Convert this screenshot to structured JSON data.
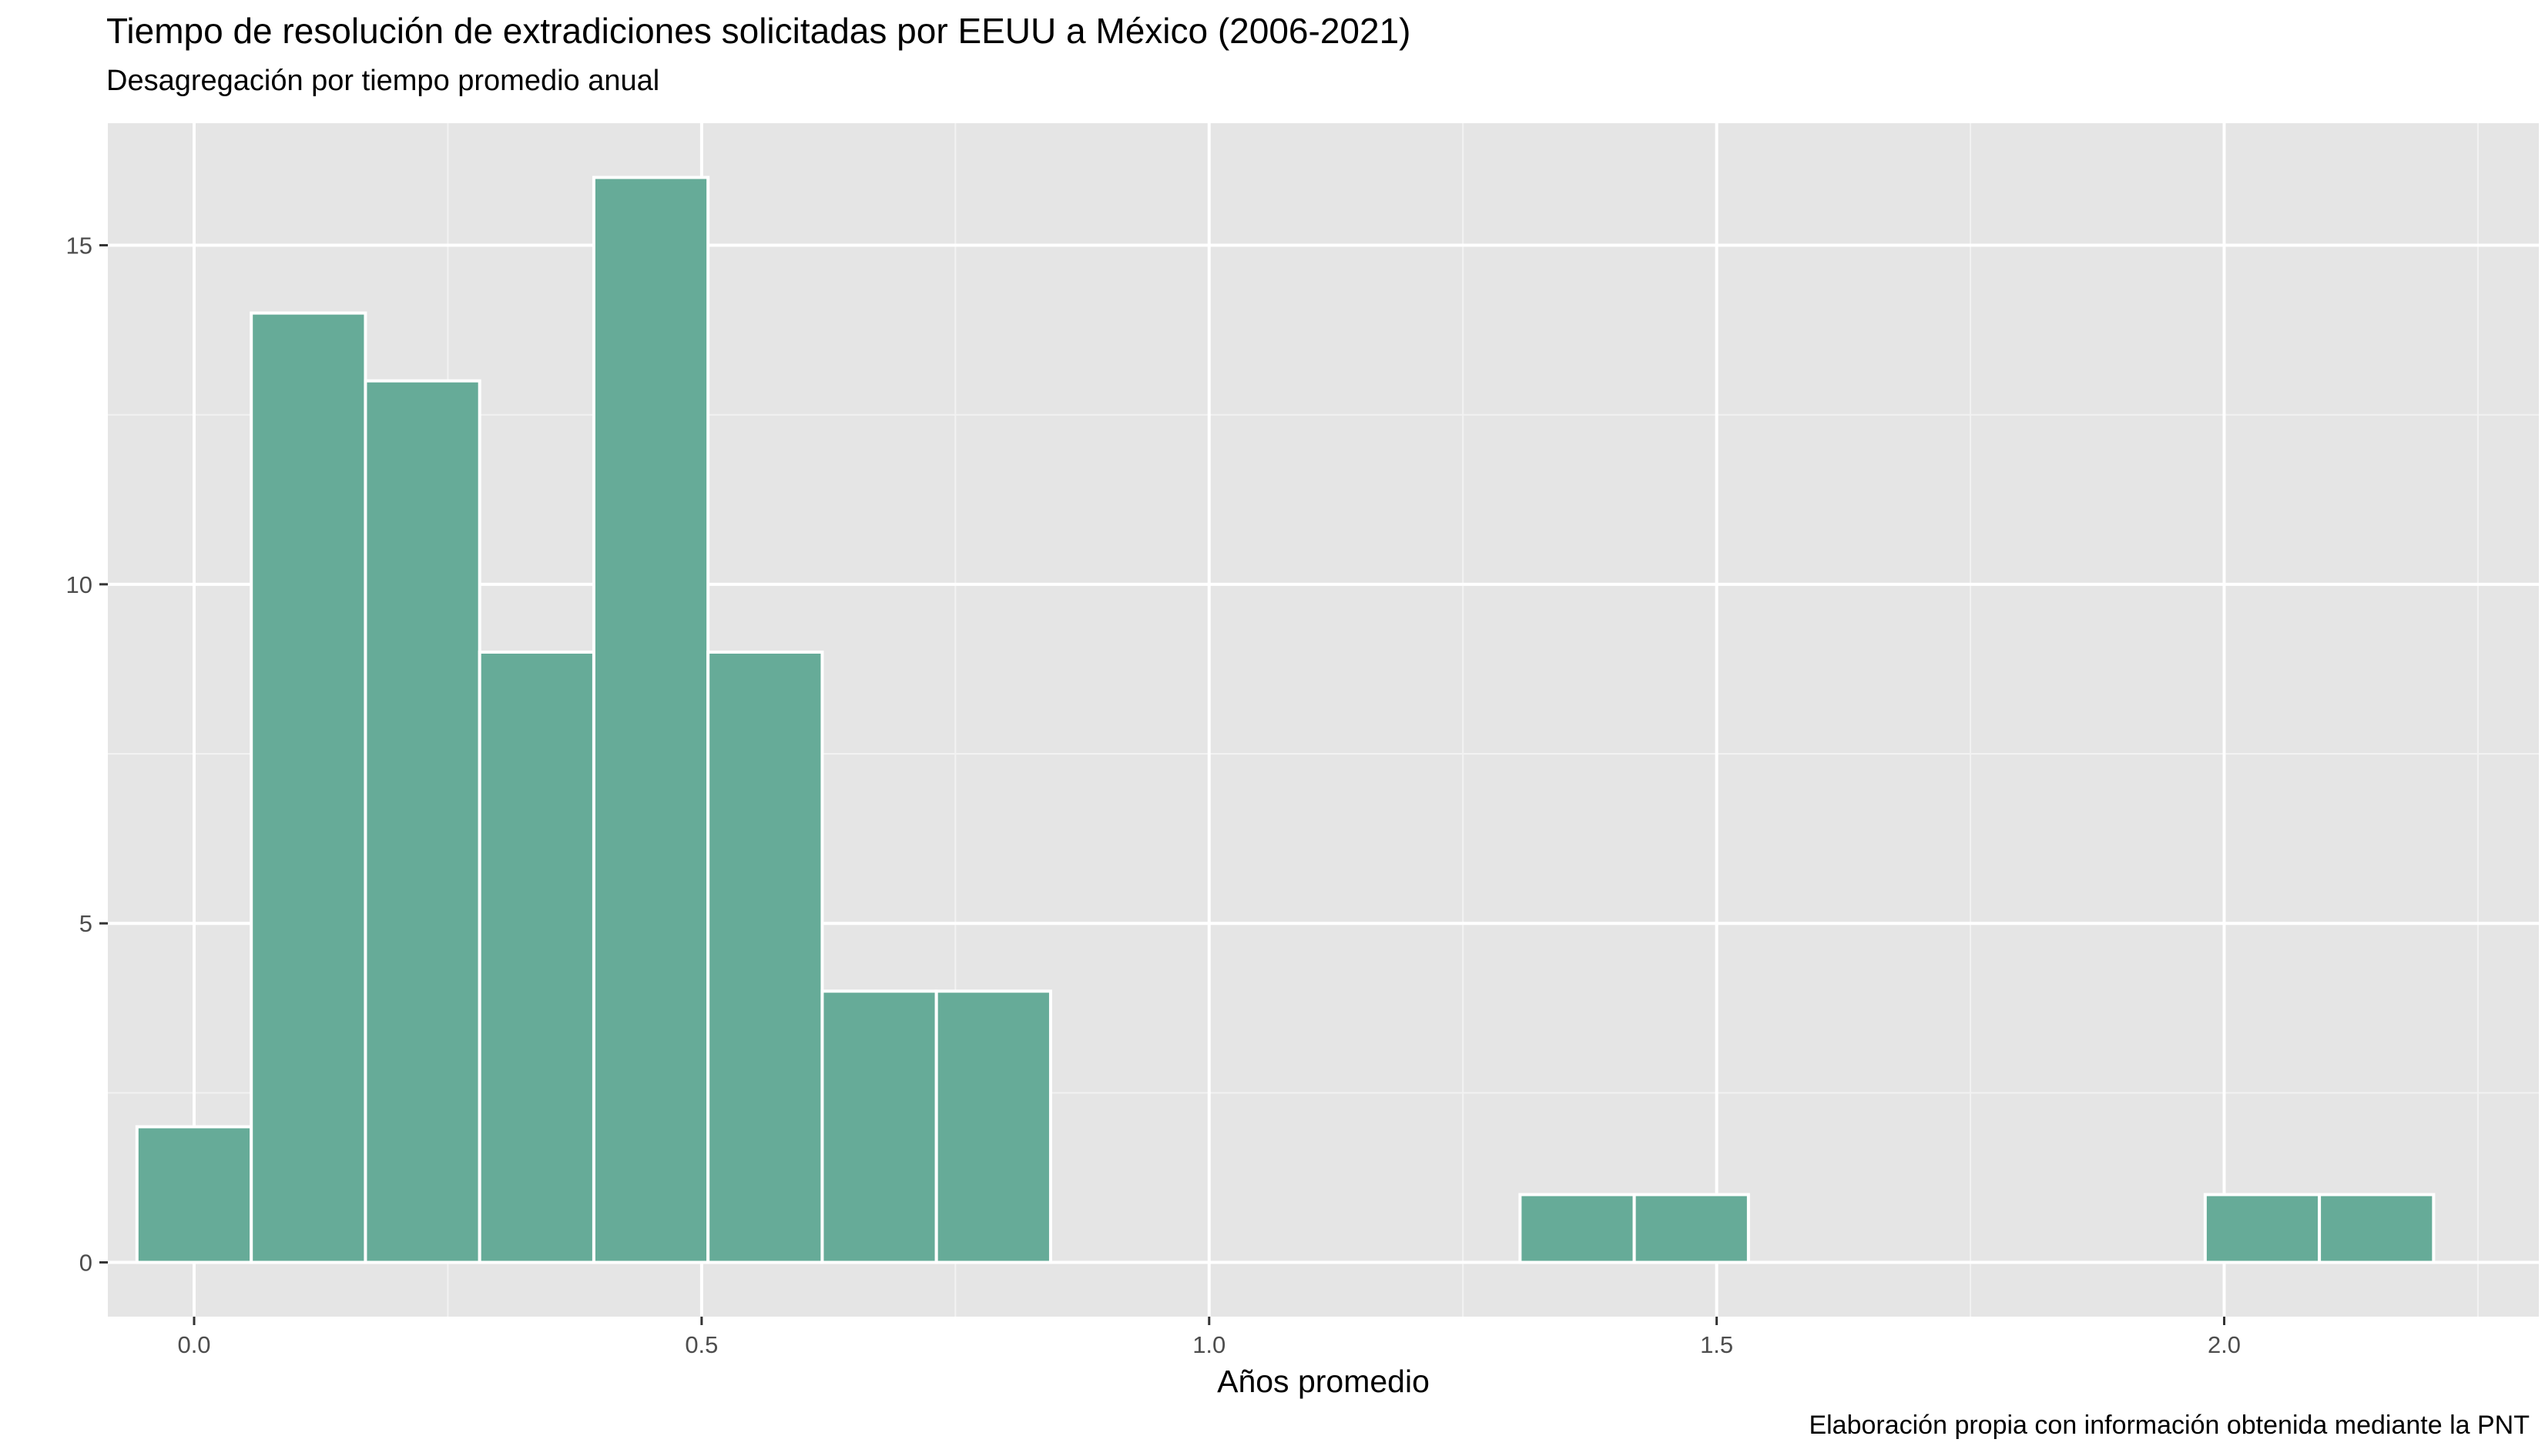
{
  "chart_data": {
    "type": "bar",
    "title": "Tiempo de resolución de extradiciones solicitadas por EEUU a México (2006-2021)",
    "subtitle": "Desagregación por tiempo promedio anual",
    "xlabel": "Años promedio",
    "ylabel": "",
    "caption": "Elaboración propia con información obtenida mediante la PNT",
    "bar_color": "#66AB98",
    "panel_color": "#E5E5E5",
    "grid": true,
    "xlim": [
      -0.085,
      2.31
    ],
    "ylim": [
      -0.8,
      16.8
    ],
    "x_ticks": [
      0.0,
      0.5,
      1.0,
      1.5,
      2.0
    ],
    "x_tick_labels": [
      "0.0",
      "0.5",
      "1.0",
      "1.5",
      "2.0"
    ],
    "y_ticks": [
      0,
      5,
      10,
      15
    ],
    "y_tick_labels": [
      "0",
      "5",
      "10",
      "15"
    ],
    "bin_width": 0.1125,
    "bins": [
      {
        "x0": -0.0563,
        "x1": 0.0563,
        "count": 2
      },
      {
        "x0": 0.0563,
        "x1": 0.1688,
        "count": 14
      },
      {
        "x0": 0.1688,
        "x1": 0.2813,
        "count": 13
      },
      {
        "x0": 0.2813,
        "x1": 0.3938,
        "count": 9
      },
      {
        "x0": 0.3938,
        "x1": 0.5063,
        "count": 16
      },
      {
        "x0": 0.5063,
        "x1": 0.6188,
        "count": 9
      },
      {
        "x0": 0.6188,
        "x1": 0.7313,
        "count": 4
      },
      {
        "x0": 0.7313,
        "x1": 0.8438,
        "count": 4
      },
      {
        "x0": 1.3063,
        "x1": 1.4188,
        "count": 1
      },
      {
        "x0": 1.4188,
        "x1": 1.5313,
        "count": 1
      },
      {
        "x0": 1.9813,
        "x1": 2.0938,
        "count": 1
      },
      {
        "x0": 2.0938,
        "x1": 2.2063,
        "count": 1
      }
    ]
  }
}
